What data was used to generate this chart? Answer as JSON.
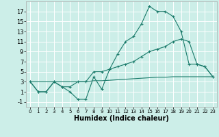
{
  "xlabel": "Humidex (Indice chaleur)",
  "bg_color": "#cceee8",
  "grid_color": "#ffffff",
  "line_color": "#1a7a6a",
  "xlim": [
    -0.5,
    23.5
  ],
  "ylim": [
    -2,
    19
  ],
  "xticks": [
    0,
    1,
    2,
    3,
    4,
    5,
    6,
    7,
    8,
    9,
    10,
    11,
    12,
    13,
    14,
    15,
    16,
    17,
    18,
    19,
    20,
    21,
    22,
    23
  ],
  "yticks": [
    -1,
    1,
    3,
    5,
    7,
    9,
    11,
    13,
    15,
    17
  ],
  "series1_x": [
    0,
    1,
    2,
    3,
    4,
    5,
    6,
    7,
    8,
    9,
    10,
    11,
    12,
    13,
    14,
    15,
    16,
    17,
    18,
    19,
    20,
    21,
    22,
    23
  ],
  "series1_y": [
    3,
    1,
    1,
    3,
    2,
    1,
    -0.5,
    -0.5,
    4,
    1.5,
    5.5,
    8.5,
    11,
    12,
    14.5,
    18,
    17,
    17,
    16,
    13,
    6.5,
    6.5,
    6,
    4
  ],
  "series2_x": [
    0,
    1,
    2,
    3,
    4,
    5,
    6,
    7,
    8,
    9,
    10,
    11,
    12,
    13,
    14,
    15,
    16,
    17,
    18,
    19,
    20,
    21,
    22,
    23
  ],
  "series2_y": [
    3,
    1,
    1,
    3,
    2,
    2,
    3,
    3,
    5,
    5,
    5.5,
    6,
    6.5,
    7,
    8,
    9,
    9.5,
    10,
    11,
    11.5,
    11,
    6.5,
    6,
    4
  ],
  "series3_x": [
    0,
    1,
    2,
    3,
    4,
    5,
    6,
    7,
    8,
    9,
    10,
    11,
    12,
    13,
    14,
    15,
    16,
    17,
    18,
    19,
    20,
    21,
    22,
    23
  ],
  "series3_y": [
    3,
    3,
    3,
    3,
    3,
    3,
    3,
    3,
    3.2,
    3.2,
    3.3,
    3.4,
    3.5,
    3.6,
    3.7,
    3.8,
    3.9,
    3.9,
    4,
    4,
    4,
    4,
    4,
    4
  ]
}
